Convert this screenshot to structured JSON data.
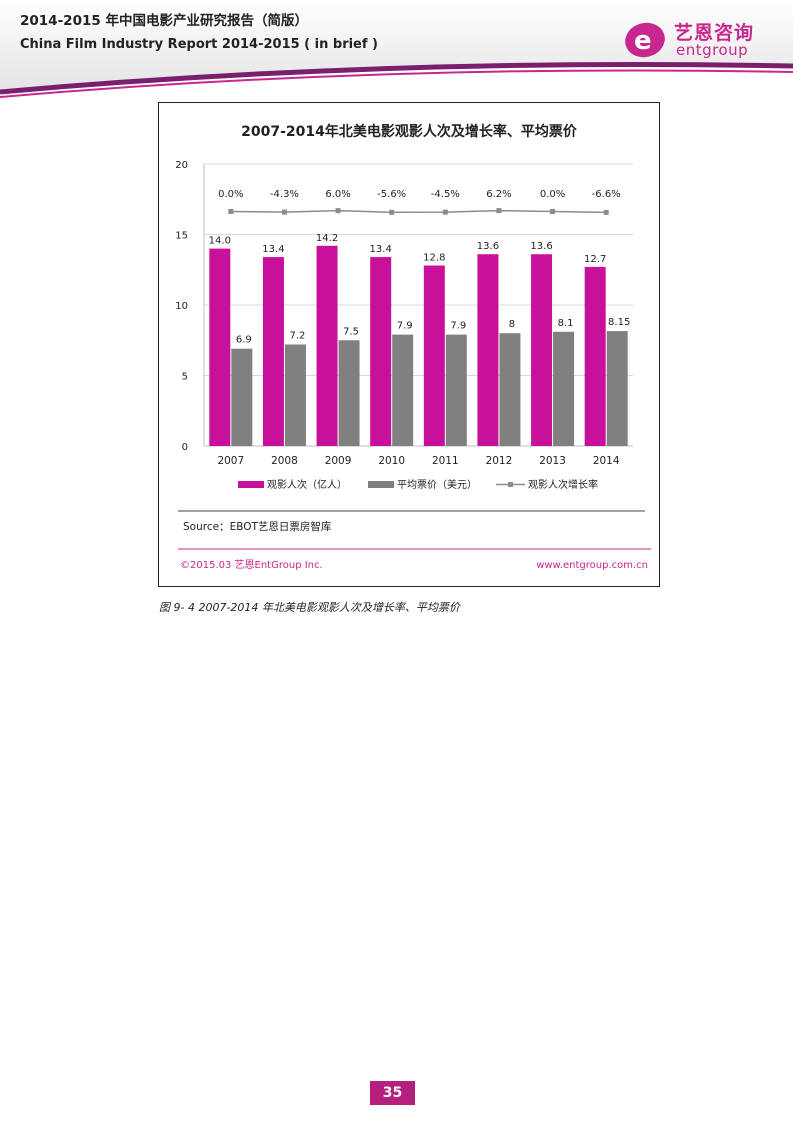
{
  "header": {
    "title_cn": "2014-2015 年中国电影产业研究报告（简版）",
    "title_en": "China Film Industry Report 2014-2015 ( in brief )",
    "logo_cn": "艺恩咨询",
    "logo_en": "entgroup",
    "accent_color": "#c8278f"
  },
  "figure": {
    "source": "Source：EBOT艺恩日票房智库",
    "copyright": "©2015.03  艺恩EntGroup Inc.",
    "website": "www.entgroup.com.cn",
    "caption": "图 9- 4 2007-2014 年北美电影观影人次及增长率、平均票价"
  },
  "chart_data": {
    "type": "bar",
    "title": "2007-2014年北美电影观影人次及增长率、平均票价",
    "categories": [
      "2007",
      "2008",
      "2009",
      "2010",
      "2011",
      "2012",
      "2013",
      "2014"
    ],
    "ylim": [
      0,
      20
    ],
    "yticks": [
      0,
      5,
      10,
      15,
      20
    ],
    "grid": true,
    "legend_position": "bottom",
    "series": [
      {
        "name": "观影人次（亿人）",
        "kind": "bar",
        "color": "#c8119a",
        "values": [
          14.0,
          13.4,
          14.2,
          13.4,
          12.8,
          13.6,
          13.6,
          12.7
        ],
        "labels": [
          "14.0",
          "13.4",
          "14.2",
          "13.4",
          "12.8",
          "13.6",
          "13.6",
          "12.7"
        ]
      },
      {
        "name": "平均票价（美元）",
        "kind": "bar",
        "color": "#808080",
        "values": [
          6.9,
          7.2,
          7.5,
          7.9,
          7.9,
          8,
          8.1,
          8.15
        ],
        "labels": [
          "6.9",
          "7.2",
          "7.5",
          "7.9",
          "7.9",
          "8",
          "8.1",
          "8.15"
        ]
      },
      {
        "name": "观影人次增长率",
        "kind": "line",
        "color": "#8c8c8c",
        "values": [
          0.0,
          -4.3,
          6.0,
          -5.6,
          -4.5,
          6.2,
          0.0,
          -6.6
        ],
        "labels": [
          "0.0%",
          "-4.3%",
          "6.0%",
          "-5.6%",
          "-4.5%",
          "6.2%",
          "0.0%",
          "-6.6%"
        ]
      }
    ]
  },
  "page_number": "35"
}
